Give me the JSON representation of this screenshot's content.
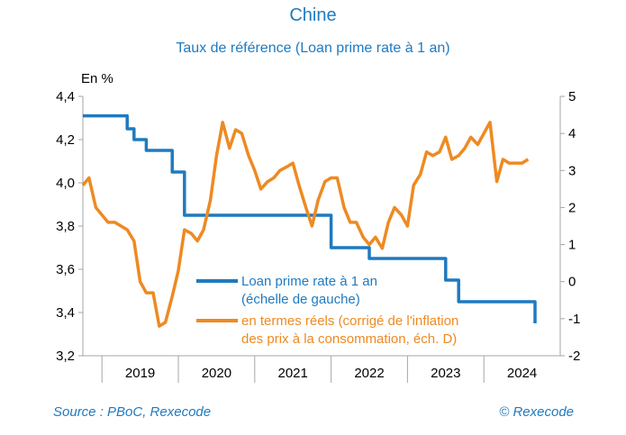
{
  "header": {
    "title": "Chine",
    "subtitle": "Taux de référence (Loan prime rate à 1 an)"
  },
  "footer": {
    "source": "Source : PBoC, Rexecode",
    "copyright": "© Rexecode"
  },
  "colors": {
    "blue": "#1f7ac0",
    "orange": "#ee8a22",
    "axis": "#a6a6a6",
    "text": "#000000"
  },
  "chart_data": {
    "type": "line",
    "title": "Chine",
    "subtitle": "Taux de référence (Loan prime rate à 1 an)",
    "left_axis": {
      "label": "En %",
      "min": 3.2,
      "max": 4.4,
      "ticks": [
        3.2,
        3.4,
        3.6,
        3.8,
        4.0,
        4.2,
        4.4
      ],
      "tick_labels": [
        "3,2",
        "3,4",
        "3,6",
        "3,8",
        "4,0",
        "4,2",
        "4,4"
      ]
    },
    "right_axis": {
      "min": -2,
      "max": 5,
      "ticks": [
        -2,
        -1,
        0,
        1,
        2,
        3,
        4,
        5
      ],
      "tick_labels": [
        "-2",
        "-1",
        "0",
        "1",
        "2",
        "3",
        "4",
        "5"
      ]
    },
    "x_axis": {
      "min": 2018.75,
      "max": 2025.0,
      "years": [
        "2019",
        "2020",
        "2021",
        "2022",
        "2023",
        "2024"
      ],
      "year_starts": [
        2019,
        2020,
        2021,
        2022,
        2023,
        2024
      ]
    },
    "legend": {
      "position": "bottom-right",
      "entries": [
        {
          "series": "lpr",
          "lines": [
            "Loan prime rate à 1 an",
            "(échelle de gauche)"
          ]
        },
        {
          "series": "real",
          "lines": [
            "en termes réels (corrigé de l'inflation",
            "des prix à la consommation, éch. D)"
          ]
        }
      ]
    },
    "series": [
      {
        "id": "lpr",
        "name": "Loan prime rate à 1 an (échelle de gauche)",
        "axis": "left",
        "color": "#1f7ac0",
        "step": true,
        "points": [
          [
            2018.75,
            4.31
          ],
          [
            2019.25,
            4.31
          ],
          [
            2019.33,
            4.25
          ],
          [
            2019.42,
            4.2
          ],
          [
            2019.5,
            4.2
          ],
          [
            2019.58,
            4.15
          ],
          [
            2019.83,
            4.15
          ],
          [
            2019.92,
            4.05
          ],
          [
            2020.0,
            4.05
          ],
          [
            2020.08,
            3.85
          ],
          [
            2021.92,
            3.85
          ],
          [
            2022.0,
            3.7
          ],
          [
            2022.42,
            3.7
          ],
          [
            2022.5,
            3.65
          ],
          [
            2023.42,
            3.65
          ],
          [
            2023.5,
            3.55
          ],
          [
            2023.58,
            3.55
          ],
          [
            2023.67,
            3.45
          ],
          [
            2024.58,
            3.45
          ],
          [
            2024.67,
            3.35
          ]
        ]
      },
      {
        "id": "real",
        "name": "en termes réels (corrigé de l'inflation des prix à la consommation, éch. D)",
        "axis": "right",
        "color": "#ee8a22",
        "points": [
          [
            2018.75,
            2.6
          ],
          [
            2018.83,
            2.8
          ],
          [
            2018.92,
            2.0
          ],
          [
            2019.0,
            1.8
          ],
          [
            2019.08,
            1.6
          ],
          [
            2019.17,
            1.6
          ],
          [
            2019.25,
            1.5
          ],
          [
            2019.33,
            1.4
          ],
          [
            2019.42,
            1.1
          ],
          [
            2019.5,
            0.0
          ],
          [
            2019.58,
            -0.3
          ],
          [
            2019.67,
            -0.3
          ],
          [
            2019.75,
            -1.2
          ],
          [
            2019.83,
            -1.1
          ],
          [
            2019.92,
            -0.4
          ],
          [
            2020.0,
            0.3
          ],
          [
            2020.08,
            1.4
          ],
          [
            2020.17,
            1.3
          ],
          [
            2020.25,
            1.1
          ],
          [
            2020.33,
            1.4
          ],
          [
            2020.42,
            2.2
          ],
          [
            2020.5,
            3.4
          ],
          [
            2020.58,
            4.3
          ],
          [
            2020.67,
            3.6
          ],
          [
            2020.75,
            4.1
          ],
          [
            2020.83,
            4.0
          ],
          [
            2020.92,
            3.4
          ],
          [
            2021.0,
            3.0
          ],
          [
            2021.08,
            2.5
          ],
          [
            2021.17,
            2.7
          ],
          [
            2021.25,
            2.8
          ],
          [
            2021.33,
            3.0
          ],
          [
            2021.42,
            3.1
          ],
          [
            2021.5,
            3.2
          ],
          [
            2021.58,
            2.6
          ],
          [
            2021.67,
            2.0
          ],
          [
            2021.75,
            1.5
          ],
          [
            2021.83,
            2.2
          ],
          [
            2021.92,
            2.7
          ],
          [
            2022.0,
            2.8
          ],
          [
            2022.08,
            2.8
          ],
          [
            2022.17,
            2.0
          ],
          [
            2022.25,
            1.6
          ],
          [
            2022.33,
            1.6
          ],
          [
            2022.42,
            1.2
          ],
          [
            2022.5,
            1.0
          ],
          [
            2022.58,
            1.2
          ],
          [
            2022.67,
            0.9
          ],
          [
            2022.75,
            1.6
          ],
          [
            2022.83,
            2.0
          ],
          [
            2022.92,
            1.8
          ],
          [
            2023.0,
            1.5
          ],
          [
            2023.08,
            2.6
          ],
          [
            2023.17,
            2.9
          ],
          [
            2023.25,
            3.5
          ],
          [
            2023.33,
            3.4
          ],
          [
            2023.42,
            3.5
          ],
          [
            2023.5,
            3.9
          ],
          [
            2023.58,
            3.3
          ],
          [
            2023.67,
            3.4
          ],
          [
            2023.75,
            3.6
          ],
          [
            2023.83,
            3.9
          ],
          [
            2023.92,
            3.7
          ],
          [
            2024.0,
            4.0
          ],
          [
            2024.08,
            4.3
          ],
          [
            2024.17,
            2.7
          ],
          [
            2024.25,
            3.3
          ],
          [
            2024.33,
            3.2
          ],
          [
            2024.42,
            3.2
          ],
          [
            2024.5,
            3.2
          ],
          [
            2024.58,
            3.3
          ]
        ]
      }
    ]
  }
}
